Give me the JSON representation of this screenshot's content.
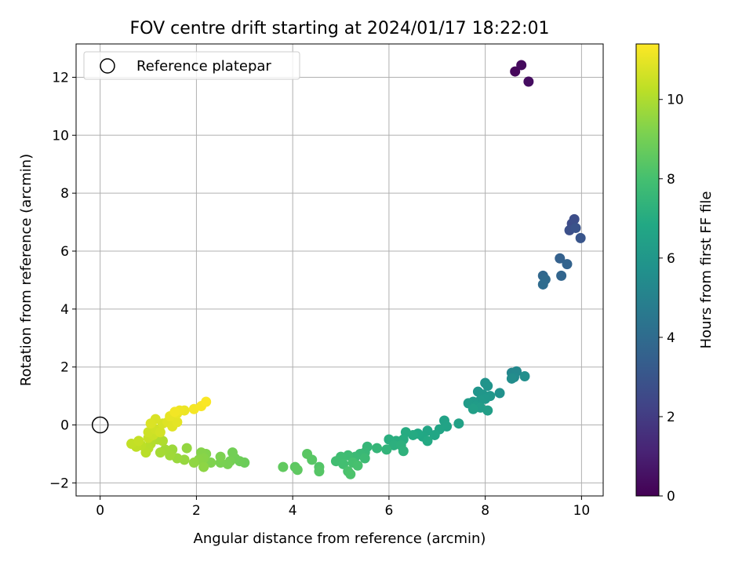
{
  "chart_data": {
    "type": "scatter",
    "title": "FOV centre drift starting at 2024/01/17 18:22:01",
    "xlabel": "Angular distance from reference (arcmin)",
    "ylabel": "Rotation from reference (arcmin)",
    "xlim": [
      -0.5,
      10.45
    ],
    "ylim": [
      -2.45,
      13.15
    ],
    "xticks": [
      0,
      2,
      4,
      6,
      8,
      10
    ],
    "yticks": [
      -2,
      0,
      2,
      4,
      6,
      8,
      10,
      12
    ],
    "grid": true,
    "legend": {
      "location": "upper-left",
      "entries": [
        {
          "label": "Reference platepar",
          "marker": "open-circle"
        }
      ]
    },
    "reference_point": {
      "x": 0,
      "y": 0
    },
    "colorbar": {
      "label": "Hours from first FF file",
      "colormap": "viridis",
      "range": [
        0,
        11.4
      ],
      "ticks": [
        0,
        2,
        4,
        6,
        8,
        10
      ]
    },
    "points_columns": [
      "x",
      "y",
      "hours"
    ],
    "points": [
      [
        8.62,
        12.2,
        0.2
      ],
      [
        8.75,
        12.42,
        0.3
      ],
      [
        8.9,
        11.85,
        0.4
      ],
      [
        9.8,
        6.95,
        2.6
      ],
      [
        9.85,
        7.1,
        2.7
      ],
      [
        9.75,
        6.72,
        2.8
      ],
      [
        9.88,
        6.8,
        2.9
      ],
      [
        9.98,
        6.45,
        3.0
      ],
      [
        9.55,
        5.75,
        3.5
      ],
      [
        9.7,
        5.55,
        3.6
      ],
      [
        9.58,
        5.15,
        3.7
      ],
      [
        9.2,
        5.15,
        3.8
      ],
      [
        9.25,
        5.02,
        3.9
      ],
      [
        9.2,
        4.85,
        4.0
      ],
      [
        8.55,
        1.8,
        5.2
      ],
      [
        8.65,
        1.85,
        5.3
      ],
      [
        8.6,
        1.65,
        5.4
      ],
      [
        8.55,
        1.6,
        5.5
      ],
      [
        8.82,
        1.68,
        5.6
      ],
      [
        8.3,
        1.1,
        5.7
      ],
      [
        8.0,
        1.45,
        5.8
      ],
      [
        8.05,
        1.35,
        5.85
      ],
      [
        7.85,
        1.15,
        5.9
      ],
      [
        7.95,
        1.05,
        5.95
      ],
      [
        8.1,
        1.0,
        6.0
      ],
      [
        8.0,
        0.9,
        6.05
      ],
      [
        7.9,
        0.85,
        6.1
      ],
      [
        7.75,
        0.8,
        6.15
      ],
      [
        7.65,
        0.75,
        6.2
      ],
      [
        7.8,
        0.65,
        6.25
      ],
      [
        7.9,
        0.6,
        6.3
      ],
      [
        8.05,
        0.5,
        6.35
      ],
      [
        7.75,
        0.55,
        6.4
      ],
      [
        7.45,
        0.05,
        6.5
      ],
      [
        7.15,
        0.15,
        6.55
      ],
      [
        7.2,
        -0.05,
        6.6
      ],
      [
        7.05,
        -0.15,
        6.65
      ],
      [
        6.8,
        -0.2,
        6.7
      ],
      [
        6.95,
        -0.35,
        6.75
      ],
      [
        6.7,
        -0.4,
        6.8
      ],
      [
        6.6,
        -0.3,
        6.85
      ],
      [
        6.8,
        -0.55,
        6.9
      ],
      [
        6.5,
        -0.35,
        6.95
      ],
      [
        6.35,
        -0.25,
        7.0
      ],
      [
        6.3,
        -0.5,
        7.05
      ],
      [
        6.15,
        -0.55,
        7.1
      ],
      [
        6.0,
        -0.5,
        7.15
      ],
      [
        6.1,
        -0.7,
        7.2
      ],
      [
        6.25,
        -0.7,
        7.25
      ],
      [
        6.3,
        -0.9,
        7.3
      ],
      [
        5.95,
        -0.85,
        7.4
      ],
      [
        5.75,
        -0.8,
        7.5
      ],
      [
        5.55,
        -0.75,
        7.55
      ],
      [
        5.5,
        -0.95,
        7.6
      ],
      [
        5.4,
        -1.0,
        7.65
      ],
      [
        5.3,
        -1.1,
        7.7
      ],
      [
        5.5,
        -1.15,
        7.75
      ],
      [
        5.15,
        -1.05,
        7.8
      ],
      [
        5.0,
        -1.1,
        7.85
      ],
      [
        4.9,
        -1.25,
        7.9
      ],
      [
        5.05,
        -1.35,
        7.95
      ],
      [
        5.25,
        -1.3,
        8.0
      ],
      [
        5.35,
        -1.4,
        8.05
      ],
      [
        5.15,
        -1.6,
        8.1
      ],
      [
        5.2,
        -1.7,
        8.15
      ],
      [
        4.55,
        -1.45,
        8.3
      ],
      [
        4.55,
        -1.6,
        8.35
      ],
      [
        4.4,
        -1.2,
        8.4
      ],
      [
        4.3,
        -1.0,
        8.45
      ],
      [
        4.05,
        -1.45,
        8.5
      ],
      [
        4.1,
        -1.55,
        8.55
      ],
      [
        3.8,
        -1.45,
        8.6
      ],
      [
        3.0,
        -1.3,
        8.8
      ],
      [
        2.9,
        -1.25,
        8.85
      ],
      [
        2.8,
        -1.15,
        8.9
      ],
      [
        2.75,
        -0.95,
        8.95
      ],
      [
        2.7,
        -1.25,
        9.0
      ],
      [
        2.65,
        -1.35,
        9.05
      ],
      [
        2.5,
        -1.3,
        9.1
      ],
      [
        2.5,
        -1.1,
        9.15
      ],
      [
        2.3,
        -1.3,
        9.2
      ],
      [
        2.2,
        -1.0,
        9.25
      ],
      [
        2.1,
        -0.95,
        9.3
      ],
      [
        2.15,
        -1.15,
        9.35
      ],
      [
        2.05,
        -1.2,
        9.4
      ],
      [
        2.15,
        -1.45,
        9.45
      ],
      [
        1.95,
        -1.3,
        9.5
      ],
      [
        1.8,
        -0.8,
        9.55
      ],
      [
        1.75,
        -1.2,
        9.6
      ],
      [
        1.6,
        -1.15,
        9.65
      ],
      [
        1.5,
        -0.85,
        9.7
      ],
      [
        1.45,
        -1.05,
        9.75
      ],
      [
        1.35,
        -0.85,
        9.8
      ],
      [
        1.25,
        -0.95,
        9.85
      ],
      [
        1.3,
        -0.55,
        10.0
      ],
      [
        1.2,
        -0.5,
        10.05
      ],
      [
        1.05,
        -0.65,
        10.1
      ],
      [
        1.0,
        -0.8,
        10.15
      ],
      [
        0.95,
        -0.95,
        10.2
      ],
      [
        0.85,
        -0.7,
        10.25
      ],
      [
        0.75,
        -0.75,
        10.3
      ],
      [
        0.65,
        -0.65,
        10.35
      ],
      [
        0.8,
        -0.55,
        10.4
      ],
      [
        1.0,
        -0.45,
        10.45
      ],
      [
        1.1,
        -0.35,
        10.5
      ],
      [
        1.0,
        -0.25,
        10.55
      ],
      [
        1.15,
        -0.15,
        10.6
      ],
      [
        1.25,
        -0.25,
        10.65
      ],
      [
        1.3,
        0.05,
        10.7
      ],
      [
        1.15,
        0.2,
        10.75
      ],
      [
        1.05,
        0.05,
        10.8
      ],
      [
        1.4,
        0.1,
        10.85
      ],
      [
        1.5,
        -0.05,
        10.9
      ],
      [
        1.6,
        0.1,
        10.95
      ],
      [
        1.45,
        0.3,
        11.0
      ],
      [
        1.6,
        0.4,
        11.05
      ],
      [
        1.75,
        0.5,
        11.1
      ],
      [
        1.65,
        0.5,
        11.15
      ],
      [
        1.55,
        0.45,
        11.2
      ],
      [
        1.95,
        0.55,
        11.25
      ],
      [
        2.1,
        0.65,
        11.3
      ],
      [
        2.2,
        0.8,
        11.35
      ]
    ]
  }
}
